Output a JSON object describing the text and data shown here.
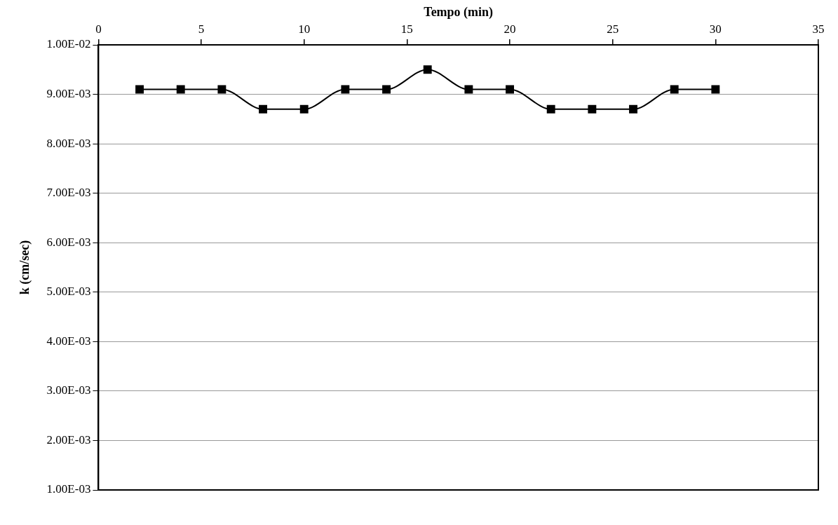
{
  "chart_data": {
    "type": "line",
    "xlabel": "Tempo (min)",
    "ylabel": "k (cm/sec)",
    "xlim": [
      0,
      35
    ],
    "xticks": [
      0,
      5,
      10,
      15,
      20,
      25,
      30,
      35
    ],
    "ylim": [
      0.001,
      0.01
    ],
    "yticks": [
      {
        "value": 0.001,
        "label": "1.00E-03"
      },
      {
        "value": 0.002,
        "label": "2.00E-03"
      },
      {
        "value": 0.003,
        "label": "3.00E-03"
      },
      {
        "value": 0.004,
        "label": "4.00E-03"
      },
      {
        "value": 0.005,
        "label": "5.00E-03"
      },
      {
        "value": 0.006,
        "label": "6.00E-03"
      },
      {
        "value": 0.007,
        "label": "7.00E-03"
      },
      {
        "value": 0.008,
        "label": "8.00E-03"
      },
      {
        "value": 0.009,
        "label": "9.00E-03"
      },
      {
        "value": 0.01,
        "label": "1.00E-02"
      }
    ],
    "grid": "y",
    "marker": "square",
    "line_style": "solid",
    "series": [
      {
        "color": "#000000",
        "x": [
          2,
          4,
          6,
          8,
          10,
          12,
          14,
          16,
          18,
          20,
          22,
          24,
          26,
          28,
          30
        ],
        "values": [
          0.0091,
          0.0091,
          0.0091,
          0.0087,
          0.0087,
          0.0091,
          0.0091,
          0.0095,
          0.0091,
          0.0091,
          0.0087,
          0.0087,
          0.0087,
          0.0091,
          0.0091
        ]
      }
    ]
  }
}
